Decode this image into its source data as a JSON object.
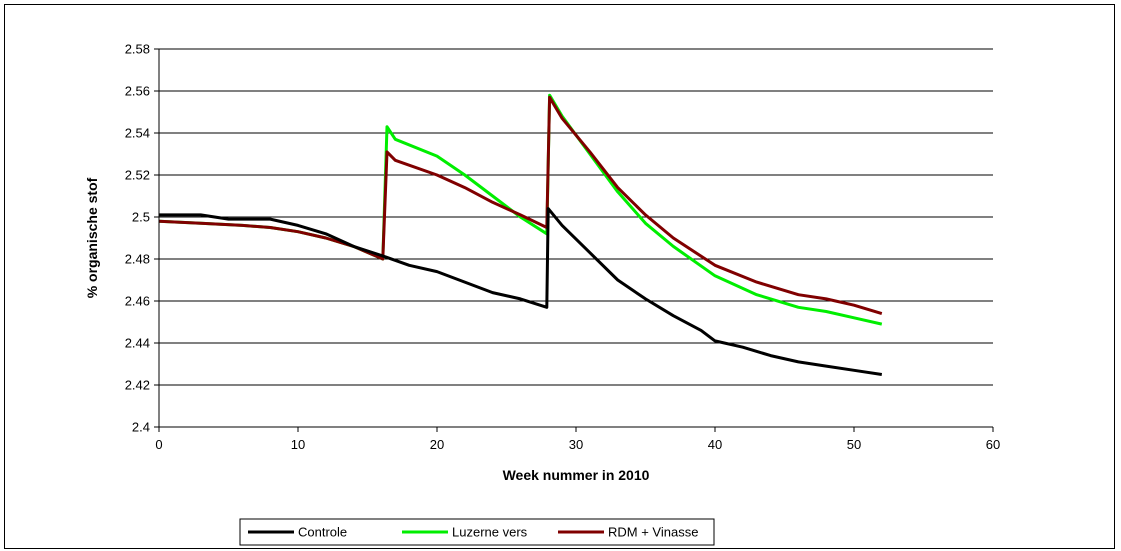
{
  "chart_data": {
    "type": "line",
    "xlabel": "Week nummer in 2010",
    "ylabel": "% organische stof",
    "xlim": [
      0,
      60
    ],
    "ylim": [
      2.4,
      2.58
    ],
    "xticks": [
      "0",
      "10",
      "20",
      "30",
      "40",
      "50",
      "60"
    ],
    "yticks": [
      "2.4",
      "2.42",
      "2.44",
      "2.46",
      "2.48",
      "2.5",
      "2.52",
      "2.54",
      "2.56",
      "2.58"
    ],
    "grid": "horizontal",
    "legend_position": "bottom",
    "series": [
      {
        "name": "Controle",
        "color": "#000000",
        "x": [
          0,
          3,
          5,
          8,
          10,
          12,
          14,
          16.3,
          18,
          20,
          22,
          24,
          26,
          27.9,
          28.0,
          29,
          31,
          33,
          35,
          37,
          39,
          40,
          42,
          44,
          46,
          48,
          50,
          52
        ],
        "y": [
          2.501,
          2.501,
          2.499,
          2.499,
          2.496,
          2.492,
          2.486,
          2.481,
          2.477,
          2.474,
          2.469,
          2.464,
          2.461,
          2.457,
          2.504,
          2.496,
          2.483,
          2.47,
          2.461,
          2.453,
          2.446,
          2.441,
          2.438,
          2.434,
          2.431,
          2.429,
          2.427,
          2.425
        ]
      },
      {
        "name": "Luzerne vers",
        "color": "#00ee00",
        "x": [
          0,
          3,
          6,
          8,
          10,
          12,
          14,
          16.1,
          16.4,
          17,
          20,
          22,
          24,
          26,
          27.9,
          28.1,
          29,
          31,
          33,
          35,
          37,
          40,
          43,
          46,
          48,
          50,
          52
        ],
        "y": [
          2.498,
          2.497,
          2.496,
          2.495,
          2.493,
          2.49,
          2.486,
          2.48,
          2.543,
          2.537,
          2.529,
          2.52,
          2.51,
          2.5,
          2.492,
          2.558,
          2.548,
          2.53,
          2.512,
          2.497,
          2.486,
          2.472,
          2.463,
          2.457,
          2.455,
          2.452,
          2.449
        ]
      },
      {
        "name": "RDM + Vinasse",
        "color": "#800000",
        "x": [
          0,
          3,
          6,
          8,
          10,
          12,
          14,
          16.1,
          16.4,
          17,
          20,
          22,
          24,
          26,
          27.9,
          28.1,
          29,
          31,
          33,
          35,
          37,
          40,
          43,
          46,
          48,
          50,
          52
        ],
        "y": [
          2.498,
          2.497,
          2.496,
          2.495,
          2.493,
          2.49,
          2.486,
          2.48,
          2.531,
          2.527,
          2.52,
          2.514,
          2.507,
          2.501,
          2.495,
          2.557,
          2.547,
          2.531,
          2.514,
          2.501,
          2.49,
          2.477,
          2.469,
          2.463,
          2.461,
          2.458,
          2.454
        ]
      }
    ]
  }
}
